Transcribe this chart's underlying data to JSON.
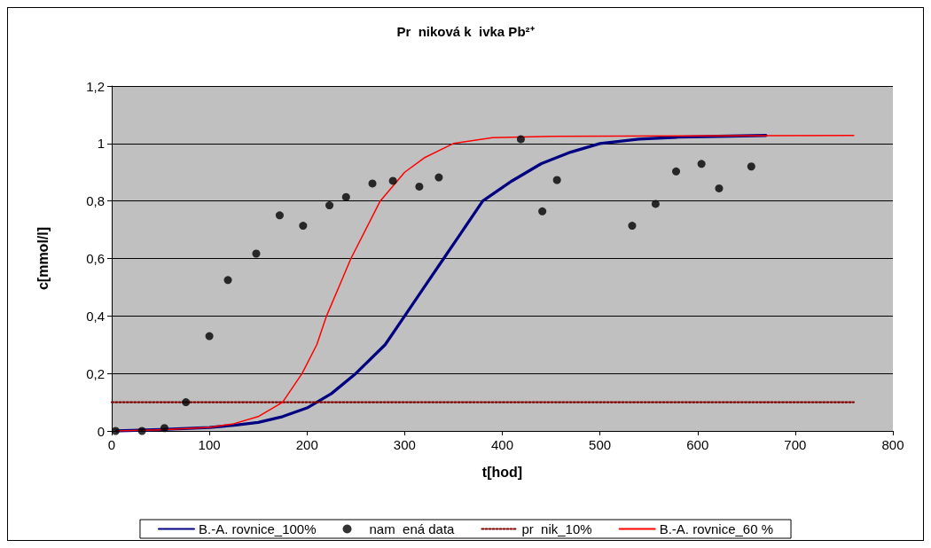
{
  "chart_data": {
    "type": "line",
    "title": "Pr  niková k  ivka Pb²⁺",
    "xlabel": "t[hod]",
    "ylabel": "c[mmol/l]",
    "xlim": [
      0,
      800
    ],
    "xticks": [
      0,
      100,
      200,
      300,
      400,
      500,
      600,
      700,
      800
    ],
    "ylim": [
      0,
      1.2
    ],
    "yticks": [
      0,
      {
        "value": 0.2,
        "label": "0,2"
      },
      {
        "value": 0.4,
        "label": "0,4"
      },
      {
        "value": 0.6,
        "label": "0,6"
      },
      {
        "value": 0.8,
        "label": "0,8"
      },
      1,
      {
        "value": 1.2,
        "label": "1,2"
      }
    ],
    "grid": "y",
    "legend": "bottom",
    "series": [
      {
        "name": "B.-A. rovnice_100%",
        "color": "#000080",
        "line_style": "solid",
        "x": [
          5,
          50,
          100,
          125,
          150,
          175,
          200,
          225,
          250,
          280,
          300,
          320,
          340,
          360,
          380,
          410,
          440,
          470,
          500,
          540,
          580,
          620,
          670
        ],
        "values": [
          0,
          0.005,
          0.012,
          0.02,
          0.03,
          0.05,
          0.08,
          0.13,
          0.2,
          0.3,
          0.4,
          0.5,
          0.6,
          0.7,
          0.8,
          0.87,
          0.93,
          0.97,
          1.0,
          1.015,
          1.022,
          1.025,
          1.028
        ]
      },
      {
        "name": "nam  ená data",
        "type": "scatter",
        "color": "#000000",
        "marker": "circle",
        "x": [
          4,
          31,
          54,
          76,
          100,
          119,
          148,
          172,
          196,
          223,
          240,
          267,
          288,
          315,
          335,
          419,
          441,
          456,
          533,
          557,
          578,
          604,
          622,
          655
        ],
        "values": [
          0,
          0,
          0.01,
          0.1,
          0.33,
          0.525,
          0.617,
          0.75,
          0.714,
          0.785,
          0.814,
          0.861,
          0.87,
          0.85,
          0.882,
          1.015,
          0.764,
          0.873,
          0.714,
          0.79,
          0.903,
          0.929,
          0.844,
          0.92
        ]
      },
      {
        "name": "pr  nik_10%",
        "color": "#800000",
        "line_style": "dotted",
        "x": [
          0,
          760
        ],
        "values": [
          0.1,
          0.1
        ]
      },
      {
        "name": "B.-A. rovnice_60 %",
        "color": "#ff0000",
        "line_style": "solid",
        "x": [
          5,
          50,
          100,
          125,
          150,
          175,
          195,
          210,
          220,
          235,
          245,
          260,
          275,
          300,
          320,
          350,
          390,
          450,
          760
        ],
        "values": [
          0,
          0.004,
          0.012,
          0.025,
          0.05,
          0.1,
          0.2,
          0.3,
          0.4,
          0.52,
          0.6,
          0.7,
          0.8,
          0.9,
          0.95,
          1.0,
          1.02,
          1.025,
          1.028
        ]
      }
    ]
  }
}
